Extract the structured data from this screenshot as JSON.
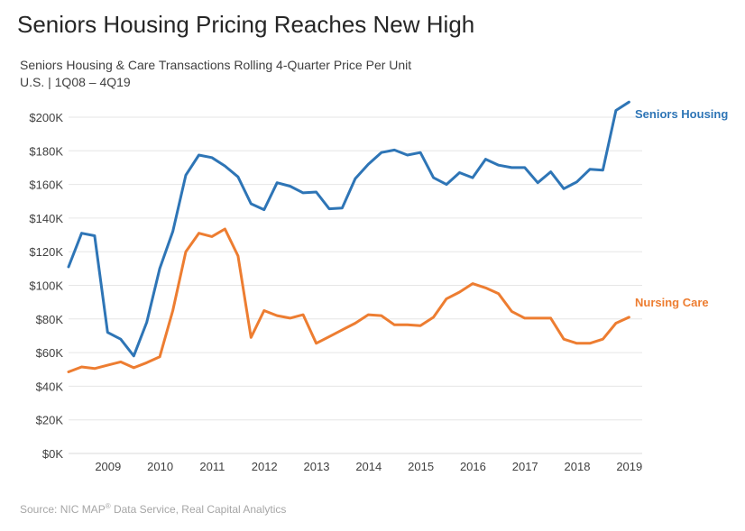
{
  "title": "Seniors Housing Pricing Reaches New High",
  "subtitle_line1": "Seniors Housing & Care Transactions Rolling 4-Quarter Price Per Unit",
  "subtitle_line2": "U.S. | 1Q08 – 4Q19",
  "source": {
    "prefix": "Source: NIC MAP",
    "superscript": "®",
    "suffix": " Data Service, Real Capital Analytics"
  },
  "colors": {
    "seniors_housing": "#2e75b6",
    "nursing_care": "#ed7d31",
    "gridline": "#e6e6e6",
    "axis": "#d9d9d9"
  },
  "chart_data": {
    "type": "line",
    "title": "Seniors Housing & Care Transactions Rolling 4-Quarter Price Per Unit",
    "xlabel": "",
    "ylabel": "",
    "ylim": [
      0,
      200000
    ],
    "y_ticks": [
      0,
      20000,
      40000,
      60000,
      80000,
      100000,
      120000,
      140000,
      160000,
      180000,
      200000
    ],
    "y_tick_labels": [
      "$0K",
      "$20K",
      "$40K",
      "$60K",
      "$80K",
      "$100K",
      "$120K",
      "$140K",
      "$160K",
      "$180K",
      "$200K"
    ],
    "x_tick_labels": [
      "2009",
      "2010",
      "2011",
      "2012",
      "2013",
      "2014",
      "2015",
      "2016",
      "2017",
      "2018",
      "2019"
    ],
    "x_tick_quarter_index": [
      4,
      8,
      12,
      16,
      20,
      24,
      28,
      32,
      36,
      40,
      44
    ],
    "grid": true,
    "series": [
      {
        "name": "Seniors Housing",
        "color": "#2e75b6",
        "values": [
          111000,
          131000,
          129500,
          72000,
          68000,
          58000,
          78000,
          110000,
          132000,
          165500,
          177500,
          176000,
          171000,
          164500,
          148500,
          145000,
          161000,
          159000,
          155000,
          155500,
          145500,
          146000,
          163500,
          172000,
          179000,
          180500,
          177500,
          179000,
          164000,
          160000,
          167000,
          164000,
          175000,
          171500,
          170000,
          170000,
          161000,
          167500,
          157500,
          161500,
          169000,
          168500,
          204000,
          209000
        ]
      },
      {
        "name": "Nursing Care",
        "color": "#ed7d31",
        "values": [
          48500,
          51500,
          50500,
          52500,
          54500,
          51000,
          54000,
          57500,
          85000,
          120000,
          131000,
          129000,
          133500,
          117500,
          69000,
          85000,
          82000,
          80500,
          82500,
          65500,
          69500,
          73500,
          77500,
          82500,
          82000,
          76500,
          76500,
          76000,
          81000,
          92000,
          96000,
          101000,
          98500,
          95000,
          84500,
          80500,
          80500,
          80500,
          68000,
          65500,
          65500,
          68000,
          77500,
          81000
        ]
      }
    ]
  }
}
